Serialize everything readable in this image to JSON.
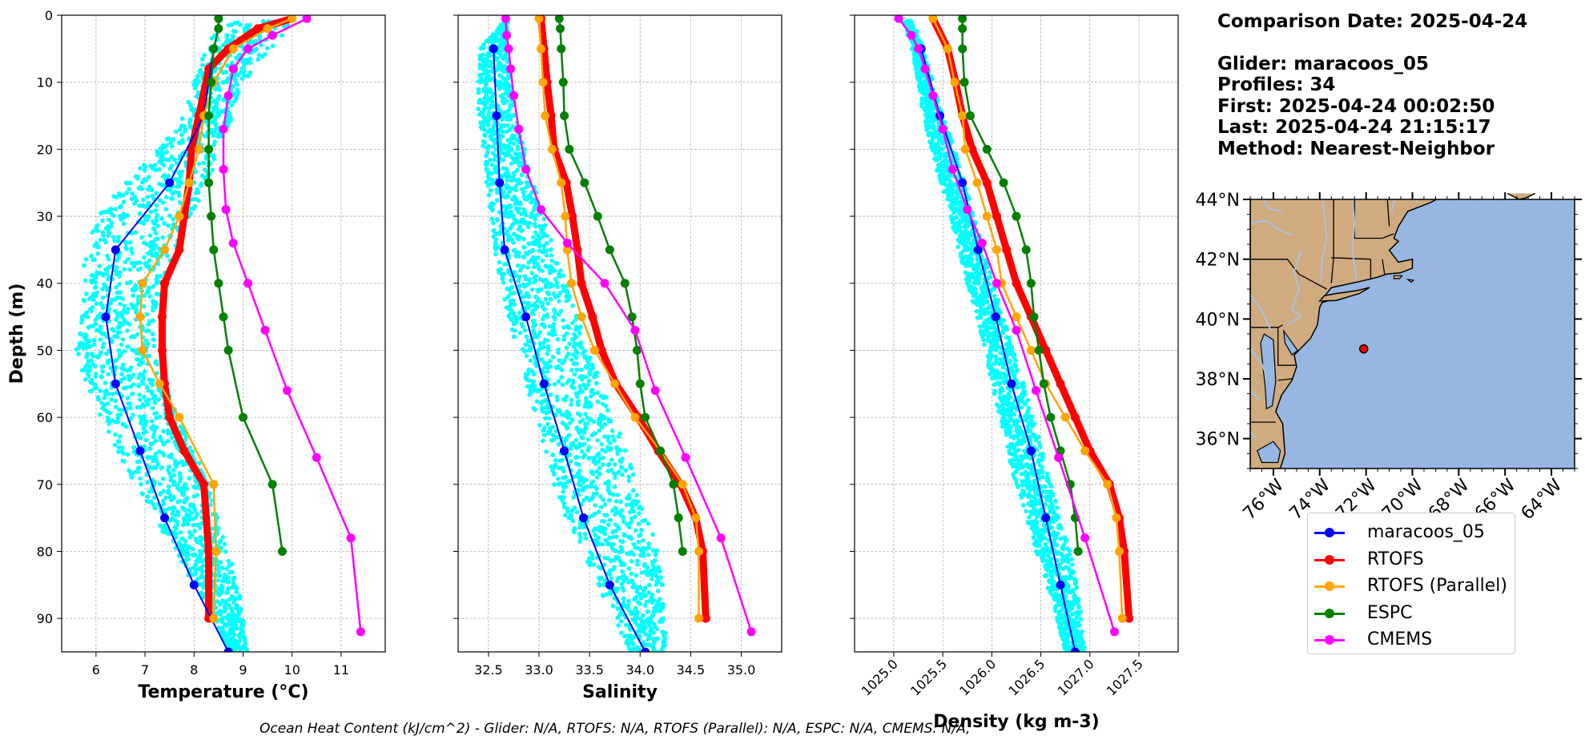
{
  "info": {
    "comparison_date": "Comparison Date: 2025-04-24",
    "glider": "Glider: maracoos_05",
    "profiles": "Profiles: 34",
    "first": "First: 2025-04-24 00:02:50",
    "last": "Last: 2025-04-24 21:15:17",
    "method": "Method: Nearest-Neighbor"
  },
  "footnote": "Ocean Heat Content (kJ/cm^2) - Glider: N/A,  RTOFS: N/A,  RTOFS (Parallel): N/A,  ESPC: N/A,  CMEMS: N/A,",
  "legend": [
    {
      "label": "maracoos_05",
      "color": "#0000ff"
    },
    {
      "label": "RTOFS",
      "color": "#ff0000"
    },
    {
      "label": "RTOFS (Parallel)",
      "color": "#ffa500"
    },
    {
      "label": "ESPC",
      "color": "#008000"
    },
    {
      "label": "CMEMS",
      "color": "#ff00ff"
    }
  ],
  "chart_data": [
    {
      "type": "line",
      "xlabel": "Temperature (°C)",
      "ylabel": "Depth (m)",
      "xlim": [
        5.3,
        11.9
      ],
      "ylim": [
        95,
        0
      ],
      "xticks": [
        6,
        7,
        8,
        9,
        10,
        11
      ],
      "yticks": [
        0,
        10,
        20,
        30,
        40,
        50,
        60,
        70,
        80,
        90
      ],
      "grid": true,
      "scatter_band": {
        "name": "maracoos_05 profiles",
        "color": "#00ffff",
        "depth": [
          1,
          5,
          10,
          15,
          20,
          25,
          30,
          35,
          40,
          45,
          50,
          55,
          60,
          65,
          70,
          75,
          80,
          85,
          90,
          95
        ],
        "min": [
          8.6,
          8.2,
          8.0,
          7.8,
          7.3,
          6.6,
          6.0,
          5.8,
          5.7,
          5.7,
          5.6,
          5.8,
          6.1,
          6.4,
          6.8,
          7.2,
          7.6,
          8.0,
          8.4,
          8.7
        ],
        "max": [
          10.0,
          9.6,
          9.0,
          8.8,
          8.5,
          8.3,
          8.0,
          7.7,
          7.4,
          7.2,
          7.2,
          7.4,
          7.7,
          8.0,
          8.3,
          8.5,
          8.7,
          8.9,
          9.0,
          9.1
        ]
      },
      "series": [
        {
          "name": "maracoos_05",
          "color": "#0000ff",
          "width": 2,
          "depth": [
            5,
            15,
            25,
            35,
            45,
            55,
            65,
            75,
            85,
            95
          ],
          "values": [
            8.4,
            8.2,
            7.5,
            6.4,
            6.2,
            6.4,
            6.9,
            7.4,
            8.0,
            8.7
          ]
        },
        {
          "name": "RTOFS",
          "color": "#ff0000",
          "width": 9,
          "depth": [
            0.5,
            2,
            5,
            8,
            15,
            20,
            25,
            30,
            35,
            40,
            45,
            50,
            55,
            60,
            65,
            70,
            80,
            90
          ],
          "values": [
            10.0,
            9.3,
            8.7,
            8.3,
            8.1,
            7.95,
            7.9,
            7.8,
            7.7,
            7.4,
            7.35,
            7.35,
            7.4,
            7.5,
            7.8,
            8.2,
            8.3,
            8.3
          ]
        },
        {
          "name": "RTOFS (Parallel)",
          "color": "#ffa500",
          "width": 2.5,
          "depth": [
            0.5,
            2,
            5,
            10,
            15,
            20,
            25,
            30,
            35,
            40,
            45,
            50,
            55,
            60,
            70,
            80,
            90
          ],
          "values": [
            10.0,
            9.5,
            8.8,
            8.4,
            8.2,
            8.1,
            7.9,
            7.7,
            7.4,
            6.95,
            6.9,
            6.95,
            7.3,
            7.7,
            8.4,
            8.45,
            8.4
          ]
        },
        {
          "name": "ESPC",
          "color": "#008000",
          "width": 2.5,
          "depth": [
            0.5,
            2,
            5,
            10,
            15,
            20,
            25,
            30,
            35,
            40,
            45,
            50,
            60,
            70,
            80
          ],
          "values": [
            8.5,
            8.5,
            8.4,
            8.35,
            8.3,
            8.3,
            8.3,
            8.35,
            8.4,
            8.5,
            8.6,
            8.7,
            9.0,
            9.6,
            9.8
          ]
        },
        {
          "name": "CMEMS",
          "color": "#ff00ff",
          "width": 2.5,
          "depth": [
            0.5,
            3,
            5,
            8,
            12,
            17,
            23,
            29,
            34,
            40,
            47,
            56,
            66,
            78,
            92
          ],
          "values": [
            10.3,
            9.6,
            9.1,
            8.8,
            8.7,
            8.6,
            8.6,
            8.65,
            8.8,
            9.1,
            9.45,
            9.9,
            10.5,
            11.2,
            11.4
          ]
        }
      ]
    },
    {
      "type": "line",
      "xlabel": "Salinity",
      "ylabel": "",
      "xlim": [
        32.2,
        35.4
      ],
      "ylim": [
        95,
        0
      ],
      "xticks": [
        32.5,
        33.0,
        33.5,
        34.0,
        34.5,
        35.0
      ],
      "xtick_labels": [
        "32.5",
        "33.0",
        "33.5",
        "34.0",
        "34.5",
        "35.0"
      ],
      "yticks": [
        0,
        10,
        20,
        30,
        40,
        50,
        60,
        70,
        80,
        90
      ],
      "grid": true,
      "scatter_band": {
        "name": "maracoos_05 profiles",
        "color": "#00ffff",
        "depth": [
          1,
          5,
          10,
          15,
          20,
          25,
          30,
          35,
          40,
          45,
          50,
          55,
          60,
          65,
          70,
          75,
          80,
          85,
          90,
          95
        ],
        "min": [
          32.65,
          32.42,
          32.4,
          32.4,
          32.45,
          32.48,
          32.52,
          32.56,
          32.62,
          32.7,
          32.78,
          32.87,
          32.97,
          33.05,
          33.15,
          33.27,
          33.42,
          33.58,
          33.75,
          33.9
        ],
        "max": [
          32.7,
          32.68,
          32.72,
          32.78,
          32.86,
          32.95,
          33.05,
          33.16,
          33.27,
          33.38,
          33.5,
          33.62,
          33.75,
          33.87,
          33.98,
          34.08,
          34.18,
          34.23,
          34.25,
          34.25
        ]
      },
      "series": [
        {
          "name": "maracoos_05",
          "color": "#0000ff",
          "width": 2,
          "depth": [
            5,
            15,
            25,
            35,
            45,
            55,
            65,
            75,
            85,
            95
          ],
          "values": [
            32.55,
            32.58,
            32.61,
            32.66,
            32.87,
            33.05,
            33.25,
            33.44,
            33.7,
            34.05
          ]
        },
        {
          "name": "RTOFS",
          "color": "#ff0000",
          "width": 9,
          "depth": [
            0.5,
            5,
            10,
            15,
            20,
            25,
            30,
            35,
            40,
            45,
            50,
            55,
            60,
            65,
            70,
            75,
            80,
            90
          ],
          "values": [
            33.02,
            33.05,
            33.08,
            33.12,
            33.15,
            33.27,
            33.33,
            33.38,
            33.42,
            33.53,
            33.62,
            33.76,
            33.98,
            34.18,
            34.4,
            34.55,
            34.62,
            34.65
          ]
        },
        {
          "name": "RTOFS (Parallel)",
          "color": "#ffa500",
          "width": 2.5,
          "depth": [
            0.5,
            5,
            10,
            15,
            20,
            25,
            30,
            35,
            40,
            45,
            50,
            55,
            60,
            65,
            70,
            75,
            80,
            90
          ],
          "values": [
            33.0,
            33.02,
            33.04,
            33.06,
            33.13,
            33.22,
            33.26,
            33.28,
            33.32,
            33.42,
            33.55,
            33.75,
            33.95,
            34.2,
            34.42,
            34.55,
            34.58,
            34.58
          ]
        },
        {
          "name": "ESPC",
          "color": "#008000",
          "width": 2.5,
          "depth": [
            0.5,
            2,
            5,
            10,
            15,
            20,
            25,
            30,
            35,
            40,
            45,
            50,
            55,
            60,
            65,
            70,
            75,
            80
          ],
          "values": [
            33.2,
            33.21,
            33.22,
            33.24,
            33.25,
            33.3,
            33.45,
            33.58,
            33.7,
            33.85,
            33.92,
            33.97,
            34.0,
            34.05,
            34.2,
            34.33,
            34.38,
            34.42
          ]
        },
        {
          "name": "CMEMS",
          "color": "#ff00ff",
          "width": 2.5,
          "depth": [
            0.5,
            3,
            5,
            8,
            12,
            17,
            23,
            29,
            34,
            40,
            47,
            56,
            66,
            78,
            92
          ],
          "values": [
            32.67,
            32.68,
            32.7,
            32.72,
            32.75,
            32.8,
            32.87,
            33.02,
            33.28,
            33.65,
            33.95,
            34.15,
            34.45,
            34.8,
            35.1
          ]
        }
      ]
    },
    {
      "type": "line",
      "xlabel": "Density (kg m-3)",
      "ylabel": "",
      "xlim": [
        1024.6,
        1027.9
      ],
      "ylim": [
        95,
        0
      ],
      "xticks": [
        1025.0,
        1025.5,
        1026.0,
        1026.5,
        1027.0,
        1027.5
      ],
      "xtick_labels": [
        "1025.0",
        "1025.5",
        "1026.0",
        "1026.5",
        "1027.0",
        "1027.5"
      ],
      "yticks": [
        0,
        10,
        20,
        30,
        40,
        50,
        60,
        70,
        80,
        90
      ],
      "grid": true,
      "scatter_band": {
        "name": "maracoos_05 profiles",
        "color": "#00ffff",
        "depth": [
          1,
          5,
          10,
          15,
          20,
          25,
          30,
          35,
          40,
          45,
          50,
          55,
          60,
          65,
          70,
          75,
          80,
          85,
          90,
          95
        ],
        "min": [
          1025.1,
          1025.18,
          1025.25,
          1025.3,
          1025.38,
          1025.48,
          1025.58,
          1025.66,
          1025.75,
          1025.85,
          1025.93,
          1026.0,
          1026.08,
          1026.15,
          1026.25,
          1026.35,
          1026.45,
          1026.56,
          1026.66,
          1026.75
        ],
        "max": [
          1025.2,
          1025.3,
          1025.4,
          1025.5,
          1025.62,
          1025.72,
          1025.82,
          1025.92,
          1026.02,
          1026.12,
          1026.22,
          1026.32,
          1026.42,
          1026.52,
          1026.6,
          1026.7,
          1026.8,
          1026.87,
          1026.92,
          1026.95
        ]
      },
      "series": [
        {
          "name": "maracoos_05",
          "color": "#0000ff",
          "width": 2,
          "depth": [
            5,
            15,
            25,
            35,
            45,
            55,
            65,
            75,
            85,
            95
          ],
          "values": [
            1025.28,
            1025.47,
            1025.7,
            1025.86,
            1026.04,
            1026.2,
            1026.4,
            1026.55,
            1026.7,
            1026.85
          ]
        },
        {
          "name": "RTOFS",
          "color": "#ff0000",
          "width": 9,
          "depth": [
            0.5,
            5,
            10,
            15,
            20,
            25,
            30,
            35,
            40,
            45,
            50,
            55,
            60,
            65,
            70,
            75,
            80,
            90
          ],
          "values": [
            1025.4,
            1025.55,
            1025.63,
            1025.7,
            1025.8,
            1025.95,
            1026.05,
            1026.15,
            1026.25,
            1026.4,
            1026.55,
            1026.7,
            1026.85,
            1027.0,
            1027.2,
            1027.3,
            1027.35,
            1027.4
          ]
        },
        {
          "name": "RTOFS (Parallel)",
          "color": "#ffa500",
          "width": 2.5,
          "depth": [
            0.5,
            5,
            10,
            15,
            20,
            25,
            30,
            35,
            40,
            45,
            50,
            55,
            60,
            65,
            70,
            75,
            80,
            90
          ],
          "values": [
            1025.4,
            1025.55,
            1025.62,
            1025.7,
            1025.73,
            1025.85,
            1025.95,
            1026.05,
            1026.1,
            1026.25,
            1026.4,
            1026.55,
            1026.75,
            1026.95,
            1027.18,
            1027.27,
            1027.3,
            1027.33
          ]
        },
        {
          "name": "ESPC",
          "color": "#008000",
          "width": 2.5,
          "depth": [
            0.5,
            2,
            5,
            10,
            15,
            20,
            25,
            30,
            35,
            40,
            45,
            50,
            55,
            60,
            65,
            70,
            75,
            80
          ],
          "values": [
            1025.7,
            1025.7,
            1025.7,
            1025.72,
            1025.78,
            1025.95,
            1026.12,
            1026.25,
            1026.35,
            1026.4,
            1026.43,
            1026.48,
            1026.53,
            1026.6,
            1026.7,
            1026.8,
            1026.85,
            1026.88
          ]
        },
        {
          "name": "CMEMS",
          "color": "#ff00ff",
          "width": 2.5,
          "depth": [
            0.5,
            3,
            5,
            8,
            12,
            17,
            23,
            29,
            34,
            40,
            47,
            56,
            66,
            78,
            92
          ],
          "values": [
            1025.05,
            1025.18,
            1025.25,
            1025.32,
            1025.4,
            1025.5,
            1025.6,
            1025.75,
            1025.9,
            1026.05,
            1026.25,
            1026.45,
            1026.68,
            1026.95,
            1027.25
          ]
        }
      ]
    },
    {
      "type": "map",
      "xlim": [
        -77,
        -63
      ],
      "ylim": [
        35,
        44
      ],
      "xticks": [
        -76,
        -74,
        -72,
        -70,
        -68,
        -66,
        -64
      ],
      "xtick_labels": [
        "76°W",
        "74°W",
        "72°W",
        "70°W",
        "68°W",
        "66°W",
        "64°W"
      ],
      "yticks": [
        36,
        38,
        40,
        42,
        44
      ],
      "ytick_labels": [
        "36°N",
        "38°N",
        "40°N",
        "42°N",
        "44°N"
      ],
      "ocean_color": "#97b6e1",
      "land_color": "#cfab7f",
      "glider_position": {
        "lon": -72.1,
        "lat": 39.0,
        "color": "#ff0000"
      }
    }
  ]
}
